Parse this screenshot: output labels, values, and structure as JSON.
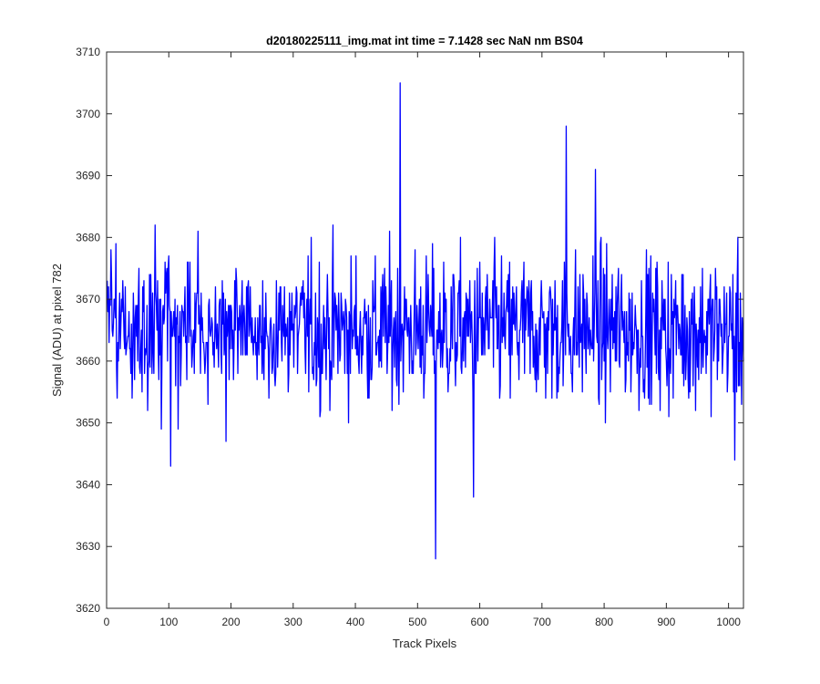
{
  "chart_data": {
    "type": "line",
    "title": "d20180225111_img.mat int time = 7.1428 sec  NaN nm BS04",
    "xlabel": "Track Pixels",
    "ylabel": "Signal (ADU) at pixel 782",
    "xlim": [
      0,
      1024
    ],
    "ylim": [
      3620,
      3710
    ],
    "xticks": [
      0,
      100,
      200,
      300,
      400,
      500,
      600,
      700,
      800,
      900,
      1000
    ],
    "yticks": [
      3620,
      3630,
      3640,
      3650,
      3660,
      3670,
      3680,
      3690,
      3700,
      3710
    ],
    "grid": false,
    "box": true,
    "series": [
      {
        "color": "#0000ff",
        "x_start": 1,
        "x_step": 1,
        "n_points": 1024,
        "mean": 3665,
        "spread": 6,
        "y_min": 3643,
        "y_max": 3689,
        "spikes": [
          {
            "x": 472,
            "y": 3705
          },
          {
            "x": 529,
            "y": 3628
          },
          {
            "x": 590,
            "y": 3638
          },
          {
            "x": 739,
            "y": 3698
          },
          {
            "x": 786,
            "y": 3691
          },
          {
            "x": 103,
            "y": 3643
          },
          {
            "x": 1010,
            "y": 3644
          }
        ]
      }
    ]
  }
}
